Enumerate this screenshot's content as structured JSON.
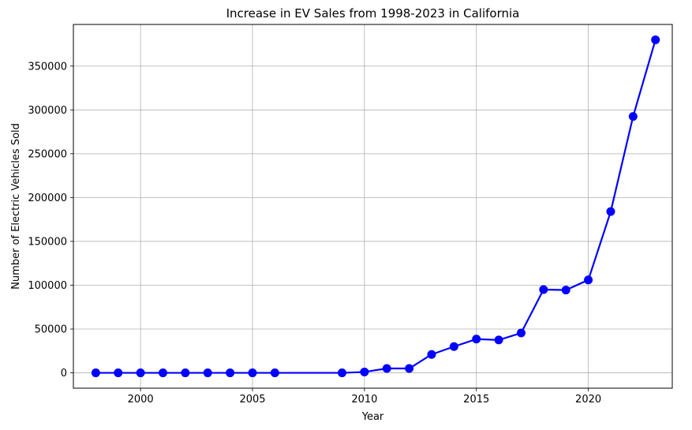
{
  "chart_data": {
    "type": "line",
    "title": "Increase in EV Sales from 1998-2023 in California",
    "xlabel": "Year",
    "ylabel": "Number of Electric Vehicles Sold",
    "xlim": [
      1997.0,
      2023.75
    ],
    "ylim": [
      -17500,
      397500
    ],
    "xticks": [
      2000,
      2005,
      2010,
      2015,
      2020
    ],
    "yticks": [
      0,
      50000,
      100000,
      150000,
      200000,
      250000,
      300000,
      350000
    ],
    "grid": true,
    "series": [
      {
        "color": "#0000ff",
        "marker": "circle",
        "x": [
          1998,
          1999,
          2000,
          2001,
          2002,
          2003,
          2004,
          2005,
          2006,
          2009,
          2010,
          2011,
          2012,
          2013,
          2014,
          2015,
          2016,
          2017,
          2018,
          2019,
          2020,
          2021,
          2022,
          2023
        ],
        "y": [
          0,
          0,
          0,
          0,
          0,
          0,
          0,
          0,
          0,
          0,
          1000,
          5000,
          5000,
          21000,
          30000,
          38500,
          37500,
          45500,
          95000,
          94500,
          106000,
          184000,
          292500,
          380000
        ]
      }
    ]
  }
}
